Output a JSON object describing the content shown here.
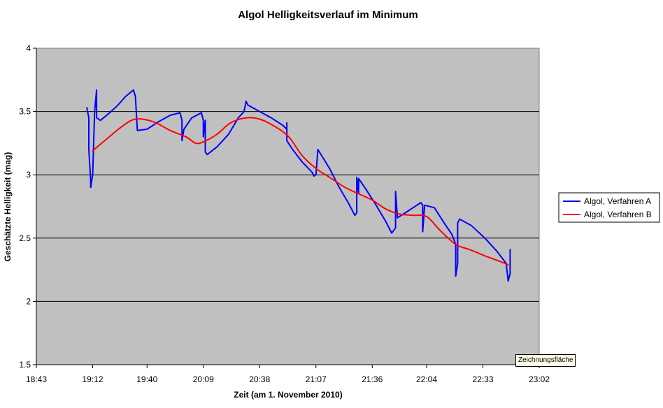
{
  "colors": {
    "plot_background": "#c0c0c0",
    "series_a": "#0000ff",
    "series_b": "#ff0000",
    "gridline": "#000000"
  },
  "chart_data": {
    "type": "line",
    "title": "Algol Helligkeitsverlauf im Minimum",
    "xlabel": "Zeit (am 1. November 2010)",
    "ylabel": "Geschätzte Helligkeit (mag)",
    "x_tick_labels": [
      "18:43",
      "19:12",
      "19:40",
      "20:09",
      "20:38",
      "21:07",
      "21:36",
      "22:04",
      "22:33",
      "23:02"
    ],
    "y_tick_labels": [
      "1.5",
      "2",
      "2.5",
      "3",
      "3.5",
      "4"
    ],
    "ylim": [
      1.5,
      4
    ],
    "xlim": [
      "18:43",
      "23:02"
    ],
    "grid": "horizontal",
    "legend_position": "right",
    "series": [
      {
        "name": "Algol, Verfahren A",
        "color": "#0000ff",
        "points": [
          [
            "19:09",
            3.53
          ],
          [
            "19:10",
            3.45
          ],
          [
            "19:10",
            3.2
          ],
          [
            "19:11",
            2.95
          ],
          [
            "19:11",
            2.9
          ],
          [
            "19:12",
            3.0
          ],
          [
            "19:13",
            3.5
          ],
          [
            "19:14",
            3.67
          ],
          [
            "19:14",
            3.45
          ],
          [
            "19:16",
            3.43
          ],
          [
            "19:20",
            3.48
          ],
          [
            "19:25",
            3.55
          ],
          [
            "19:29",
            3.62
          ],
          [
            "19:33",
            3.67
          ],
          [
            "19:34",
            3.62
          ],
          [
            "19:35",
            3.35
          ],
          [
            "19:40",
            3.36
          ],
          [
            "19:46",
            3.42
          ],
          [
            "19:52",
            3.47
          ],
          [
            "19:57",
            3.49
          ],
          [
            "19:58",
            3.43
          ],
          [
            "19:58",
            3.27
          ],
          [
            "19:59",
            3.36
          ],
          [
            "20:03",
            3.45
          ],
          [
            "20:08",
            3.49
          ],
          [
            "20:09",
            3.43
          ],
          [
            "20:09",
            3.3
          ],
          [
            "20:10",
            3.43
          ],
          [
            "20:10",
            3.18
          ],
          [
            "20:11",
            3.16
          ],
          [
            "20:16",
            3.22
          ],
          [
            "20:22",
            3.32
          ],
          [
            "20:27",
            3.45
          ],
          [
            "20:30",
            3.5
          ],
          [
            "20:31",
            3.58
          ],
          [
            "20:32",
            3.55
          ],
          [
            "20:38",
            3.5
          ],
          [
            "20:44",
            3.45
          ],
          [
            "20:50",
            3.39
          ],
          [
            "20:52",
            3.36
          ],
          [
            "20:52",
            3.41
          ],
          [
            "20:52",
            3.27
          ],
          [
            "20:55",
            3.2
          ],
          [
            "21:00",
            3.1
          ],
          [
            "21:05",
            3.02
          ],
          [
            "21:06",
            2.99
          ],
          [
            "21:07",
            3.0
          ],
          [
            "21:08",
            3.2
          ],
          [
            "21:10",
            3.15
          ],
          [
            "21:14",
            3.05
          ],
          [
            "21:19",
            2.9
          ],
          [
            "21:24",
            2.77
          ],
          [
            "21:27",
            2.68
          ],
          [
            "21:28",
            2.7
          ],
          [
            "21:28",
            2.98
          ],
          [
            "21:29",
            2.85
          ],
          [
            "21:29",
            2.97
          ],
          [
            "21:33",
            2.88
          ],
          [
            "21:38",
            2.76
          ],
          [
            "21:43",
            2.63
          ],
          [
            "21:46",
            2.54
          ],
          [
            "21:48",
            2.58
          ],
          [
            "21:48",
            2.87
          ],
          [
            "21:49",
            2.66
          ],
          [
            "21:53",
            2.7
          ],
          [
            "21:57",
            2.74
          ],
          [
            "22:00",
            2.77
          ],
          [
            "22:01",
            2.78
          ],
          [
            "22:02",
            2.76
          ],
          [
            "22:02",
            2.55
          ],
          [
            "22:03",
            2.76
          ],
          [
            "22:08",
            2.74
          ],
          [
            "22:13",
            2.62
          ],
          [
            "22:17",
            2.53
          ],
          [
            "22:19",
            2.45
          ],
          [
            "22:19",
            2.2
          ],
          [
            "22:20",
            2.3
          ],
          [
            "22:20",
            2.62
          ],
          [
            "22:21",
            2.65
          ],
          [
            "22:27",
            2.6
          ],
          [
            "22:34",
            2.5
          ],
          [
            "22:40",
            2.4
          ],
          [
            "22:45",
            2.3
          ],
          [
            "22:46",
            2.16
          ],
          [
            "22:47",
            2.22
          ],
          [
            "22:47",
            2.41
          ]
        ]
      },
      {
        "name": "Algol, Verfahren B",
        "color": "#ff0000",
        "points": [
          [
            "19:12",
            3.19
          ],
          [
            "19:19",
            3.28
          ],
          [
            "19:27",
            3.38
          ],
          [
            "19:34",
            3.44
          ],
          [
            "19:43",
            3.42
          ],
          [
            "19:52",
            3.35
          ],
          [
            "20:00",
            3.3
          ],
          [
            "20:05",
            3.25
          ],
          [
            "20:09",
            3.26
          ],
          [
            "20:16",
            3.32
          ],
          [
            "20:23",
            3.41
          ],
          [
            "20:31",
            3.45
          ],
          [
            "20:38",
            3.44
          ],
          [
            "20:46",
            3.38
          ],
          [
            "20:53",
            3.3
          ],
          [
            "21:00",
            3.15
          ],
          [
            "21:07",
            3.05
          ],
          [
            "21:14",
            2.98
          ],
          [
            "21:22",
            2.9
          ],
          [
            "21:29",
            2.85
          ],
          [
            "21:36",
            2.8
          ],
          [
            "21:43",
            2.73
          ],
          [
            "21:50",
            2.69
          ],
          [
            "21:57",
            2.68
          ],
          [
            "22:04",
            2.67
          ],
          [
            "22:11",
            2.56
          ],
          [
            "22:19",
            2.45
          ],
          [
            "22:26",
            2.41
          ],
          [
            "22:34",
            2.36
          ],
          [
            "22:41",
            2.32
          ],
          [
            "22:46",
            2.29
          ]
        ]
      }
    ]
  },
  "ui": {
    "tooltip_text": "Zeichnungsfläche"
  }
}
